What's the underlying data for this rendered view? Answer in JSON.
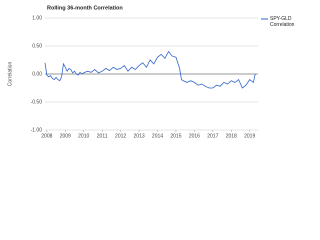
{
  "chart_data": {
    "type": "line",
    "title": "Rolling 36-month Correlation",
    "ylabel": "Correlation",
    "x": [
      2007.9,
      2008.0,
      2008.1,
      2008.2,
      2008.3,
      2008.4,
      2008.5,
      2008.6,
      2008.7,
      2008.8,
      2008.9,
      2009.0,
      2009.1,
      2009.2,
      2009.3,
      2009.4,
      2009.5,
      2009.6,
      2009.7,
      2009.8,
      2009.9,
      2010.0,
      2010.2,
      2010.4,
      2010.6,
      2010.8,
      2011.0,
      2011.2,
      2011.4,
      2011.6,
      2011.8,
      2012.0,
      2012.2,
      2012.4,
      2012.6,
      2012.8,
      2013.0,
      2013.2,
      2013.4,
      2013.6,
      2013.8,
      2014.0,
      2014.2,
      2014.4,
      2014.6,
      2014.8,
      2015.0,
      2015.2,
      2015.3,
      2015.4,
      2015.6,
      2015.8,
      2016.0,
      2016.2,
      2016.4,
      2016.6,
      2016.8,
      2017.0,
      2017.2,
      2017.4,
      2017.6,
      2017.8,
      2018.0,
      2018.2,
      2018.4,
      2018.6,
      2018.8,
      2019.0,
      2019.2,
      2019.3
    ],
    "series": [
      {
        "name": "SPY-GLD Correlation",
        "color": "#3366cc",
        "values": [
          0.2,
          -0.02,
          -0.05,
          -0.03,
          -0.08,
          -0.1,
          -0.06,
          -0.1,
          -0.12,
          -0.05,
          0.18,
          0.12,
          0.05,
          0.1,
          0.08,
          0.02,
          0.05,
          0.0,
          -0.02,
          0.03,
          0.0,
          0.02,
          0.05,
          0.03,
          0.08,
          0.02,
          0.05,
          0.1,
          0.06,
          0.12,
          0.08,
          0.1,
          0.15,
          0.05,
          0.12,
          0.08,
          0.15,
          0.2,
          0.12,
          0.25,
          0.18,
          0.3,
          0.35,
          0.28,
          0.4,
          0.32,
          0.3,
          0.1,
          -0.1,
          -0.12,
          -0.15,
          -0.12,
          -0.15,
          -0.2,
          -0.18,
          -0.22,
          -0.25,
          -0.25,
          -0.2,
          -0.22,
          -0.15,
          -0.18,
          -0.12,
          -0.15,
          -0.1,
          -0.25,
          -0.2,
          -0.1,
          -0.15,
          0.0
        ]
      }
    ],
    "xlim": [
      2007.9,
      2019.45
    ],
    "xticks": [
      2008,
      2009,
      2010,
      2011,
      2012,
      2013,
      2014,
      2015,
      2016,
      2017,
      2018,
      2019
    ],
    "ylim": [
      -1,
      1
    ],
    "yticks": [
      {
        "value": 1,
        "label": "1.00"
      },
      {
        "value": 0.5,
        "label": "0.50"
      },
      {
        "value": 0,
        "label": "0.00"
      },
      {
        "value": -0.5,
        "label": "-0.50"
      },
      {
        "value": -1,
        "label": "-1.00"
      }
    ],
    "grid": true,
    "legend": "right"
  }
}
